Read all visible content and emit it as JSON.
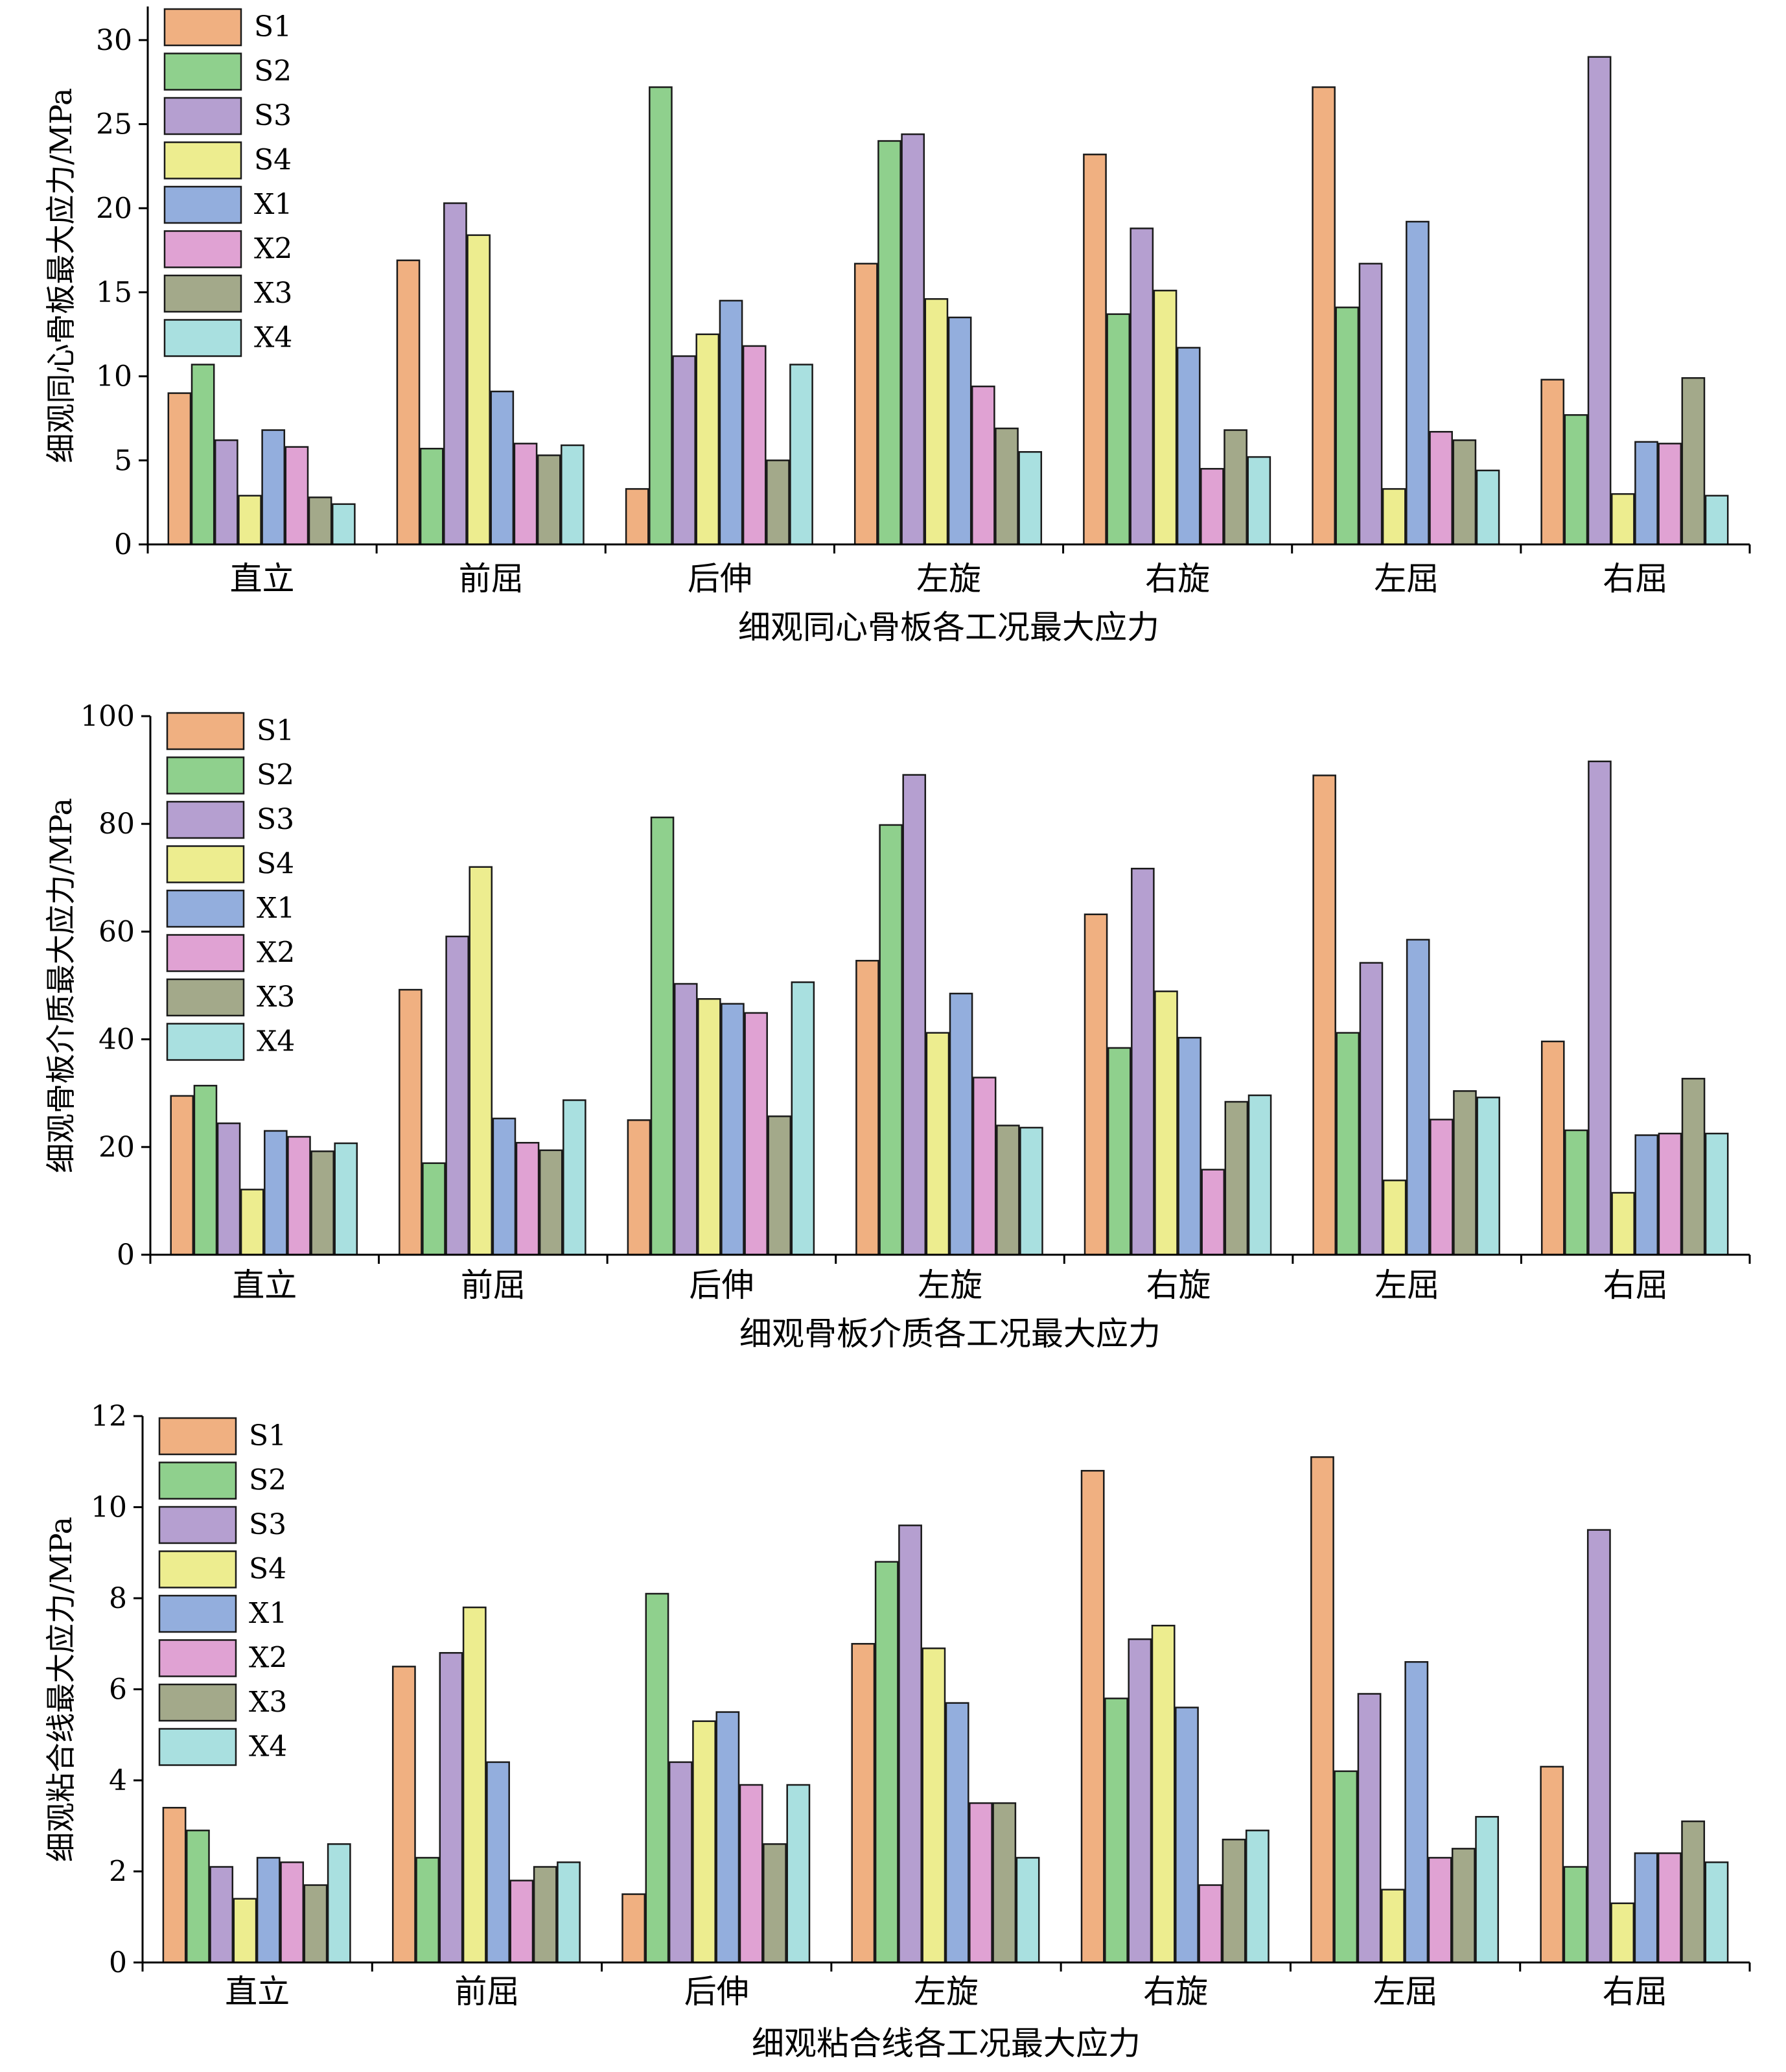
{
  "series_names": [
    "S1",
    "S2",
    "S3",
    "S4",
    "X1",
    "X2",
    "X3",
    "X4"
  ],
  "colors": {
    "S1": "#f0b081",
    "S2": "#8fd08d",
    "S3": "#b59fd0",
    "S4": "#eded8f",
    "X1": "#93aedd",
    "X2": "#e0a2d3",
    "X3": "#a3a98a",
    "X4": "#a9e0e0",
    "stroke": "#1a1a1a"
  },
  "chart_data": [
    {
      "type": "bar",
      "title": "细观同心骨板各工况最大应力",
      "ylabel": "细观同心骨板最大应力/MPa",
      "categories": [
        "直立",
        "前屈",
        "后伸",
        "左旋",
        "右旋",
        "左屈",
        "右屈"
      ],
      "ylim": [
        0,
        32
      ],
      "yticks": [
        0,
        5,
        10,
        15,
        20,
        25,
        30
      ],
      "legend_position": "top-left",
      "series": [
        {
          "name": "S1",
          "values": [
            9.0,
            16.9,
            3.3,
            16.7,
            23.2,
            27.2,
            9.8
          ]
        },
        {
          "name": "S2",
          "values": [
            10.7,
            5.7,
            27.2,
            24.0,
            13.7,
            14.1,
            7.7
          ]
        },
        {
          "name": "S3",
          "values": [
            6.2,
            20.3,
            11.2,
            24.4,
            18.8,
            16.7,
            29.0
          ]
        },
        {
          "name": "S4",
          "values": [
            2.9,
            18.4,
            12.5,
            14.6,
            15.1,
            3.3,
            3.0
          ]
        },
        {
          "name": "X1",
          "values": [
            6.8,
            9.1,
            14.5,
            13.5,
            11.7,
            19.2,
            6.1
          ]
        },
        {
          "name": "X2",
          "values": [
            5.8,
            6.0,
            11.8,
            9.4,
            4.5,
            6.7,
            6.0
          ]
        },
        {
          "name": "X3",
          "values": [
            2.8,
            5.3,
            5.0,
            6.9,
            6.8,
            6.2,
            9.9
          ]
        },
        {
          "name": "X4",
          "values": [
            2.4,
            5.9,
            10.7,
            5.5,
            5.2,
            4.4,
            2.9
          ]
        }
      ]
    },
    {
      "type": "bar",
      "title": "细观骨板介质各工况最大应力",
      "ylabel": "细观骨板介质最大应力/MPa",
      "categories": [
        "直立",
        "前屈",
        "后伸",
        "左旋",
        "右旋",
        "左屈",
        "右屈"
      ],
      "ylim": [
        0,
        100
      ],
      "yticks": [
        0,
        20,
        40,
        60,
        80,
        100
      ],
      "legend_position": "top-left",
      "series": [
        {
          "name": "S1",
          "values": [
            29.5,
            49.2,
            25.0,
            54.6,
            63.2,
            89.0,
            39.6
          ]
        },
        {
          "name": "S2",
          "values": [
            31.4,
            17.0,
            81.2,
            79.8,
            38.4,
            41.2,
            23.1
          ]
        },
        {
          "name": "S3",
          "values": [
            24.4,
            59.1,
            50.3,
            89.1,
            71.7,
            54.2,
            91.6
          ]
        },
        {
          "name": "S4",
          "values": [
            12.1,
            72.0,
            47.5,
            41.2,
            48.9,
            13.8,
            11.5
          ]
        },
        {
          "name": "X1",
          "values": [
            23.0,
            25.3,
            46.6,
            48.5,
            40.3,
            58.5,
            22.2
          ]
        },
        {
          "name": "X2",
          "values": [
            21.9,
            20.8,
            44.9,
            32.9,
            15.8,
            25.1,
            22.5
          ]
        },
        {
          "name": "X3",
          "values": [
            19.2,
            19.4,
            25.7,
            24.0,
            28.4,
            30.4,
            32.7
          ]
        },
        {
          "name": "X4",
          "values": [
            20.7,
            28.7,
            50.6,
            23.6,
            29.6,
            29.2,
            22.5
          ]
        }
      ]
    },
    {
      "type": "bar",
      "title": "细观粘合线各工况最大应力",
      "ylabel": "细观粘合线最大应力/MPa",
      "categories": [
        "直立",
        "前屈",
        "后伸",
        "左旋",
        "右旋",
        "左屈",
        "右屈"
      ],
      "ylim": [
        0,
        12
      ],
      "yticks": [
        0,
        2,
        4,
        6,
        8,
        10,
        12
      ],
      "legend_position": "top-left",
      "series": [
        {
          "name": "S1",
          "values": [
            3.4,
            6.5,
            1.5,
            7.0,
            10.8,
            11.1,
            4.3
          ]
        },
        {
          "name": "S2",
          "values": [
            2.9,
            2.3,
            8.1,
            8.8,
            5.8,
            4.2,
            2.1
          ]
        },
        {
          "name": "S3",
          "values": [
            2.1,
            6.8,
            4.4,
            9.6,
            7.1,
            5.9,
            9.5
          ]
        },
        {
          "name": "S4",
          "values": [
            1.4,
            7.8,
            5.3,
            6.9,
            7.4,
            1.6,
            1.3
          ]
        },
        {
          "name": "X1",
          "values": [
            2.3,
            4.4,
            5.5,
            5.7,
            5.6,
            6.6,
            2.4
          ]
        },
        {
          "name": "X2",
          "values": [
            2.2,
            1.8,
            3.9,
            3.5,
            1.7,
            2.3,
            2.4
          ]
        },
        {
          "name": "X3",
          "values": [
            1.7,
            2.1,
            2.6,
            3.5,
            2.7,
            2.5,
            3.1
          ]
        },
        {
          "name": "X4",
          "values": [
            2.6,
            2.2,
            3.9,
            2.3,
            2.9,
            3.2,
            2.2
          ]
        }
      ]
    }
  ]
}
